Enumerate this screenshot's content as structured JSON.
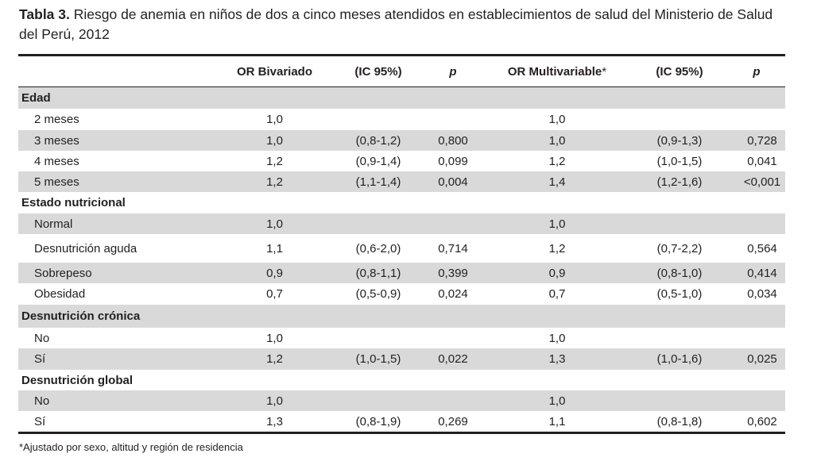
{
  "caption": {
    "label": "Tabla 3.",
    "text": " Riesgo de anemia en niños de dos a cinco meses atendidos en establecimientos de salud del Ministerio de Salud del Perú, 2012"
  },
  "headers": {
    "or_biv": "OR Bivariado",
    "ic1": "(IC 95%)",
    "p1": "p",
    "or_multi": "OR Multivariable",
    "or_multi_mark": "*",
    "ic2": "(IC 95%)",
    "p2": "p"
  },
  "rows": [
    {
      "type": "group",
      "label": "Edad"
    },
    {
      "type": "data",
      "label": "2 meses",
      "or_biv": "1,0",
      "ic1": "",
      "p1": "",
      "or_multi": "1,0",
      "ic2": "",
      "p2": ""
    },
    {
      "type": "data",
      "label": "3 meses",
      "or_biv": "1,0",
      "ic1": "(0,8-1,2)",
      "p1": "0,800",
      "or_multi": "1,0",
      "ic2": "(0,9-1,3)",
      "p2": "0,728"
    },
    {
      "type": "data",
      "label": "4 meses",
      "or_biv": "1,2",
      "ic1": "(0,9-1,4)",
      "p1": "0,099",
      "or_multi": "1,2",
      "ic2": "(1,0-1,5)",
      "p2": "0,041"
    },
    {
      "type": "data",
      "label": "5 meses",
      "or_biv": "1,2",
      "ic1": "(1,1-1,4)",
      "p1": "0,004",
      "or_multi": "1,4",
      "ic2": "(1,2-1,6)",
      "p2": "<0,001"
    },
    {
      "type": "group",
      "label": "Estado nutricional"
    },
    {
      "type": "data",
      "label": "Normal",
      "or_biv": "1,0",
      "ic1": "",
      "p1": "",
      "or_multi": "1,0",
      "ic2": "",
      "p2": ""
    },
    {
      "type": "data",
      "label": "Desnutrición aguda",
      "or_biv": "1,1",
      "ic1": "(0,6-2,0)",
      "p1": "0,714",
      "or_multi": "1,2",
      "ic2": "(0,7-2,2)",
      "p2": "0,564"
    },
    {
      "type": "data",
      "label": "Sobrepeso",
      "or_biv": "0,9",
      "ic1": "(0,8-1,1)",
      "p1": "0,399",
      "or_multi": "0,9",
      "ic2": "(0,8-1,0)",
      "p2": "0,414"
    },
    {
      "type": "data",
      "label": "Obesidad",
      "or_biv": "0,7",
      "ic1": "(0,5-0,9)",
      "p1": "0,024",
      "or_multi": "0,7",
      "ic2": "(0,5-1,0)",
      "p2": "0,034"
    },
    {
      "type": "group",
      "label": "Desnutrición crónica"
    },
    {
      "type": "data",
      "label": "No",
      "or_biv": "1,0",
      "ic1": "",
      "p1": "",
      "or_multi": "1,0",
      "ic2": "",
      "p2": ""
    },
    {
      "type": "data",
      "label": "Sí",
      "or_biv": "1,2",
      "ic1": "(1,0-1,5)",
      "p1": "0,022",
      "or_multi": "1,3",
      "ic2": "(1,0-1,6)",
      "p2": "0,025"
    },
    {
      "type": "group",
      "label": "Desnutrición global"
    },
    {
      "type": "data",
      "label": "No",
      "or_biv": "1,0",
      "ic1": "",
      "p1": "",
      "or_multi": "1,0",
      "ic2": "",
      "p2": ""
    },
    {
      "type": "data",
      "label": "Sí",
      "or_biv": "1,3",
      "ic1": "(0,8-1,9)",
      "p1": "0,269",
      "or_multi": "1,1",
      "ic2": "(0,8-1,8)",
      "p2": "0,602"
    }
  ],
  "footnote": "*Ajustado por sexo, altitud y región de residencia"
}
